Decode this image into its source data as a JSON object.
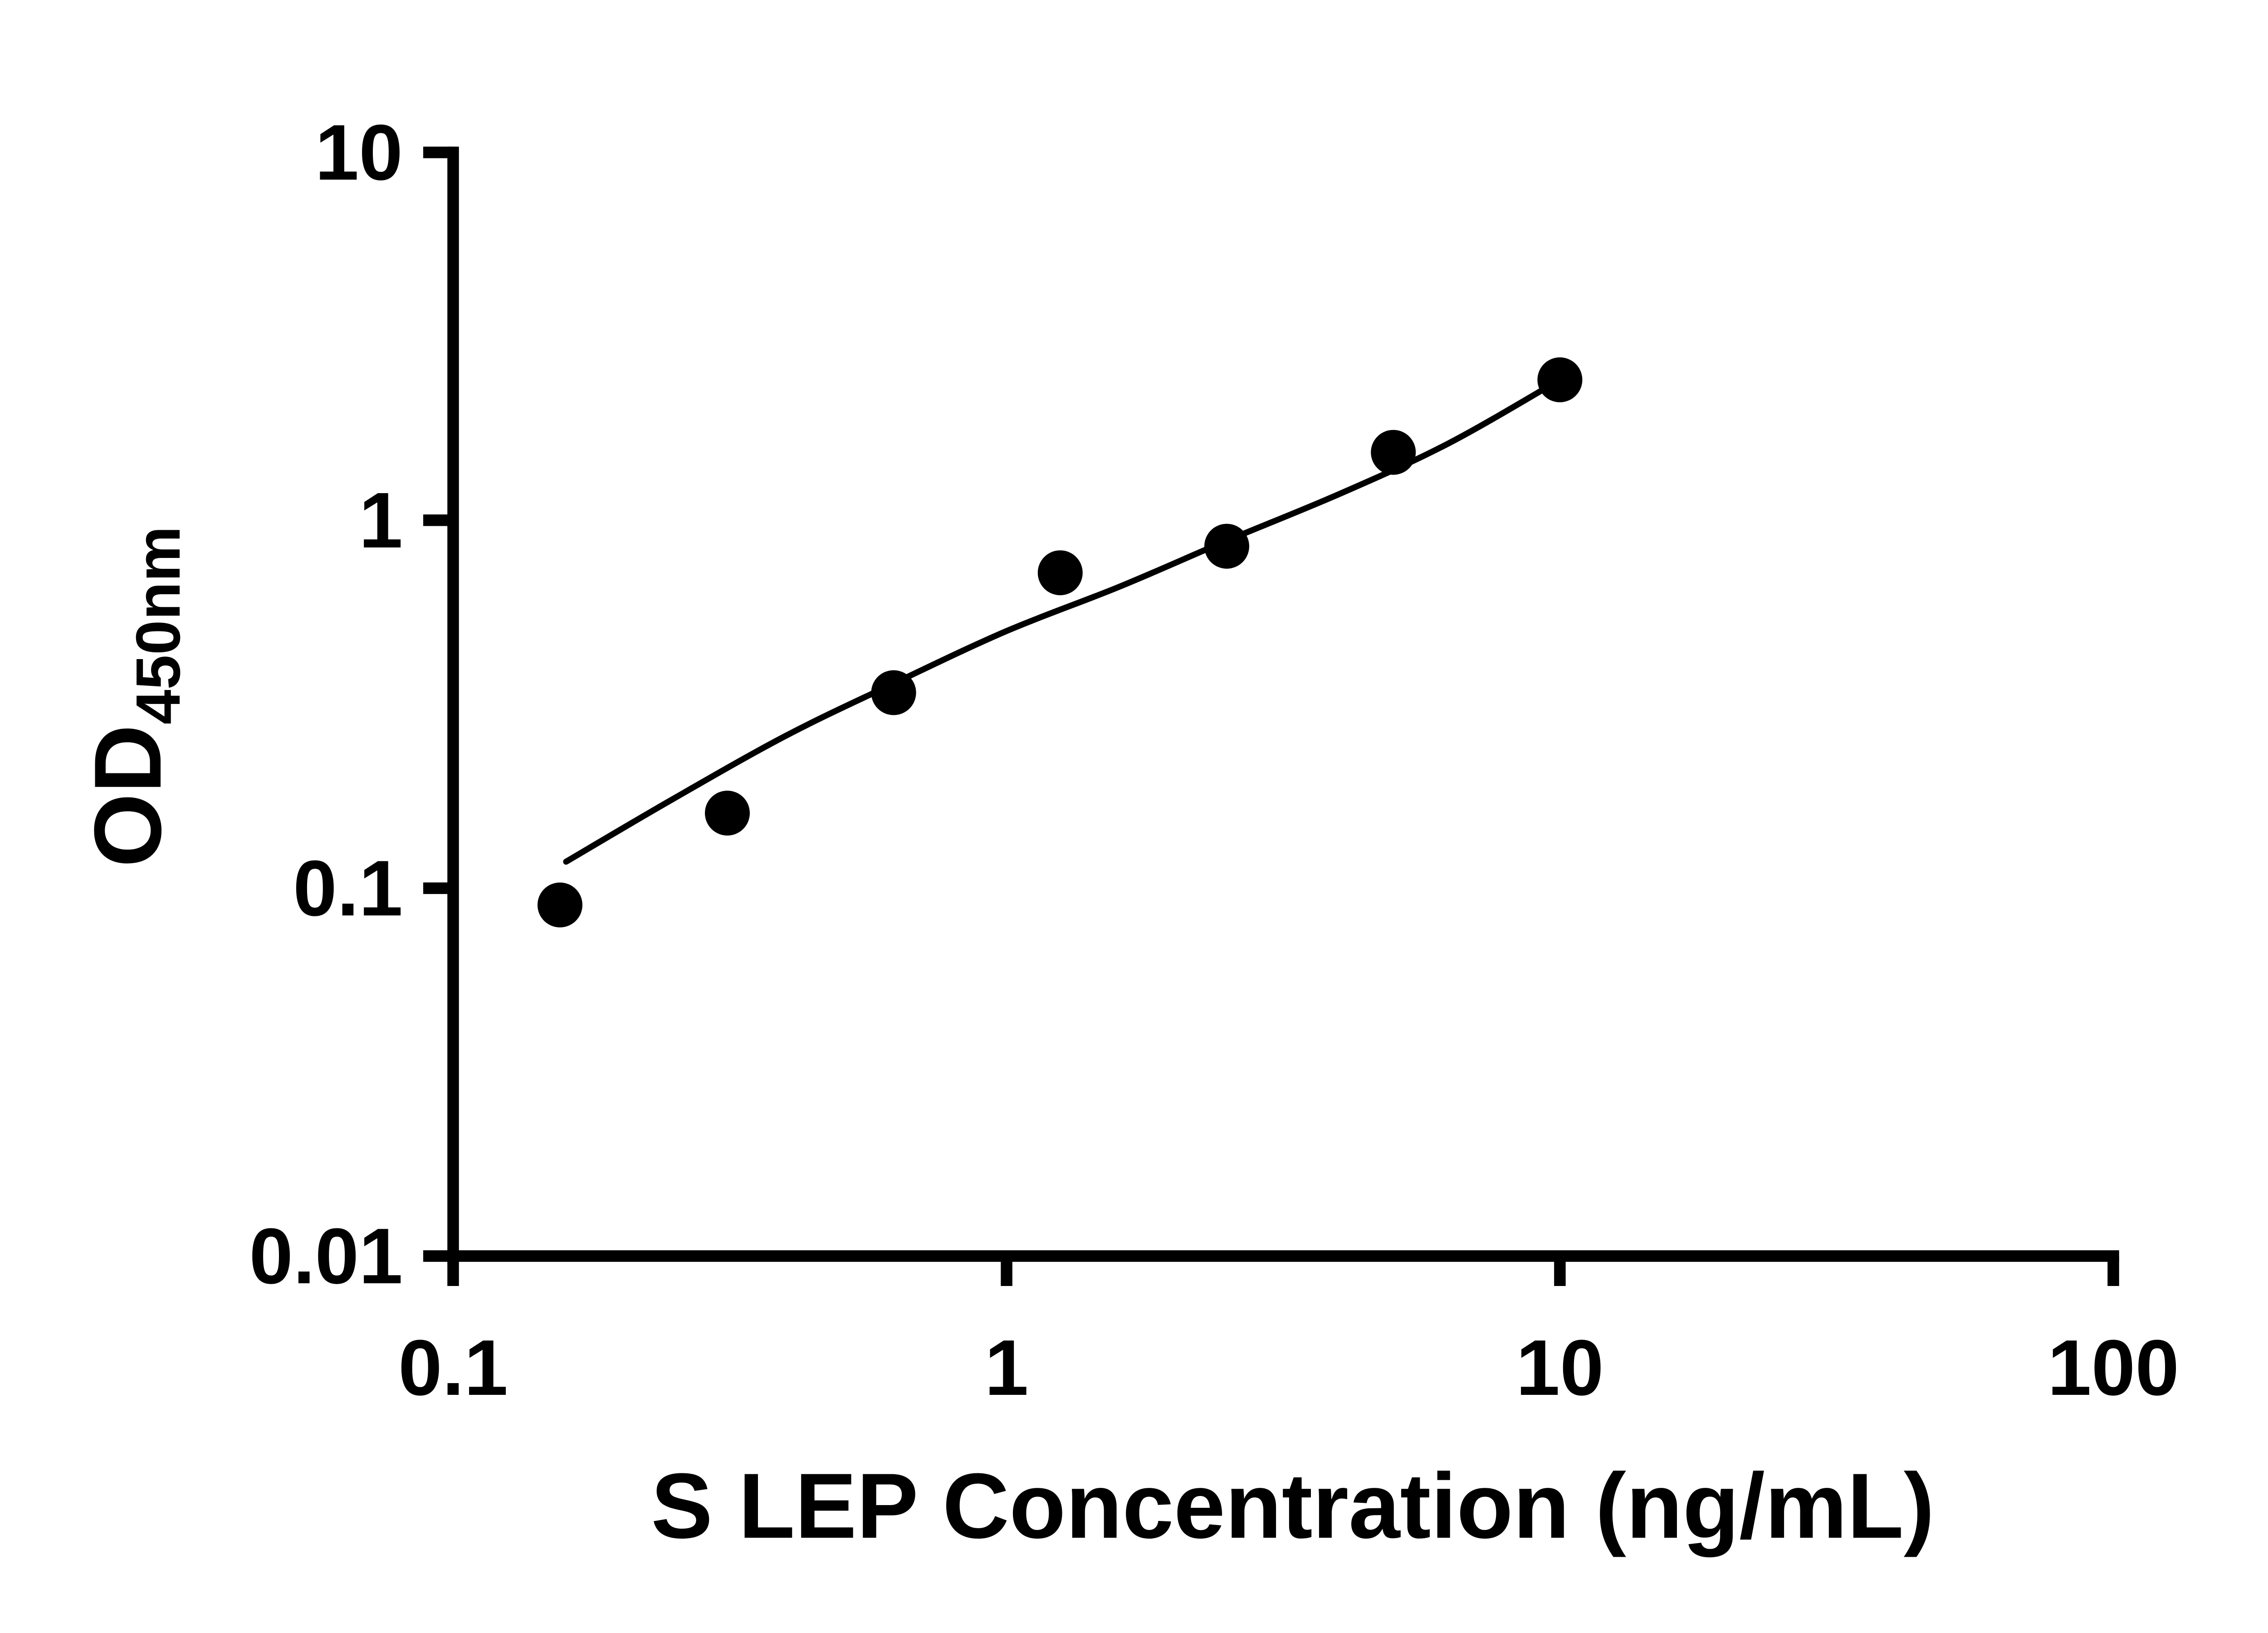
{
  "page": {
    "background": "#ffffff",
    "text_color": "#000000"
  },
  "chart_data": {
    "type": "scatter",
    "title": "",
    "xlabel": "S LEP Concentration (ng/mL)",
    "ylabel_main": "OD",
    "ylabel_sub": "450nm",
    "x_scale": "log10",
    "y_scale": "log10",
    "xlim": [
      0.1,
      100
    ],
    "ylim": [
      0.01,
      10
    ],
    "x_ticks": [
      0.1,
      1,
      10,
      100
    ],
    "x_tick_labels": [
      "0.1",
      "1",
      "10",
      "100"
    ],
    "y_ticks": [
      0.01,
      0.1,
      1,
      10
    ],
    "y_tick_labels": [
      "0.01",
      "0.1",
      "1",
      "10"
    ],
    "grid": false,
    "legend": false,
    "axis_color": "#000000",
    "series": [
      {
        "marker": "circle",
        "color": "#000000",
        "points": [
          {
            "x": 0.156,
            "y": 0.09
          },
          {
            "x": 0.313,
            "y": 0.16
          },
          {
            "x": 0.625,
            "y": 0.34
          },
          {
            "x": 1.25,
            "y": 0.72
          },
          {
            "x": 2.5,
            "y": 0.85
          },
          {
            "x": 5,
            "y": 1.53
          },
          {
            "x": 10,
            "y": 2.41
          }
        ]
      }
    ],
    "trendline": {
      "type": "fitted-curve",
      "color": "#000000",
      "points": [
        {
          "x": 0.16,
          "y": 0.118
        },
        {
          "x": 0.25,
          "y": 0.175
        },
        {
          "x": 0.4,
          "y": 0.26
        },
        {
          "x": 0.625,
          "y": 0.36
        },
        {
          "x": 1.0,
          "y": 0.5
        },
        {
          "x": 1.6,
          "y": 0.66
        },
        {
          "x": 2.5,
          "y": 0.88
        },
        {
          "x": 4.0,
          "y": 1.18
        },
        {
          "x": 6.3,
          "y": 1.62
        },
        {
          "x": 10,
          "y": 2.41
        }
      ]
    }
  }
}
